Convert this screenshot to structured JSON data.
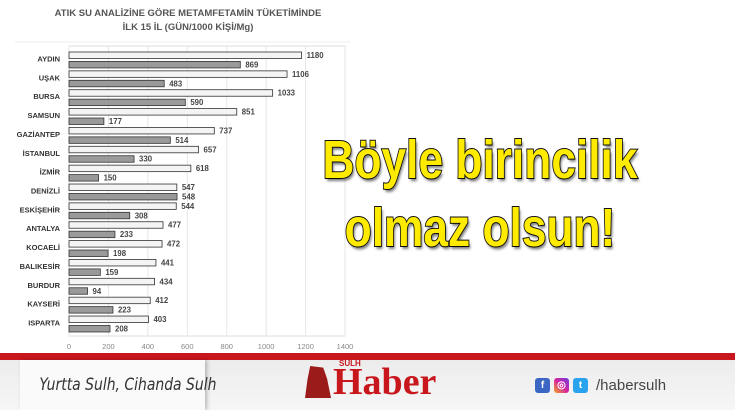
{
  "chart_data": {
    "type": "bar",
    "orientation": "horizontal",
    "title": "ATIK SU ANALİZİNE GÖRE METAMFETAMİN TÜKETİMİNDE",
    "subtitle": "İLK 15 İL (GÜN/1000 KİŞİ/Mg)",
    "categories": [
      "AYDIN",
      "UŞAK",
      "BURSA",
      "SAMSUN",
      "GAZİANTEP",
      "İSTANBUL",
      "İZMİR",
      "DENİZLİ",
      "ESKİŞEHİR",
      "ANTALYA",
      "KOCAELİ",
      "BALIKESİR",
      "BURDUR",
      "KAYSERİ",
      "ISPARTA"
    ],
    "series": [
      {
        "values": [
          1180,
          1106,
          1033,
          851,
          737,
          657,
          618,
          547,
          544,
          477,
          472,
          441,
          434,
          412,
          403
        ],
        "color": "#f4f4f4"
      },
      {
        "values": [
          869,
          483,
          590,
          177,
          514,
          330,
          150,
          548,
          308,
          233,
          198,
          159,
          94,
          223,
          208
        ],
        "color": "#9a9a9a"
      }
    ],
    "xlim": [
      0,
      1400
    ],
    "xticks": [
      "0",
      "200",
      "400",
      "600",
      "800",
      "1000",
      "1200",
      "1400"
    ],
    "grid": "vertical"
  },
  "headline": {
    "line1": "Böyle birincilik",
    "line2": "olmaz olsun!"
  },
  "footer": {
    "slogan": "Yurtta Sulh, Cihanda Sulh",
    "logo_small": "SULH",
    "logo_main": "Haber",
    "handle": "/habersulh",
    "icons": [
      "facebook-icon",
      "instagram-icon",
      "twitter-icon"
    ]
  }
}
